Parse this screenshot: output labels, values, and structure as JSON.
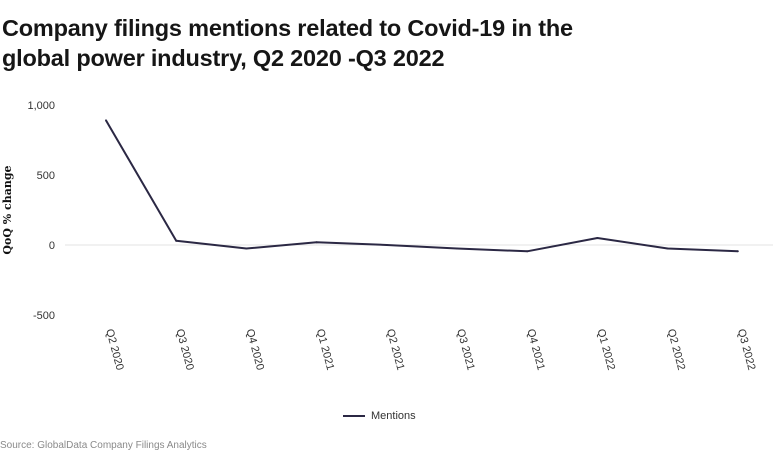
{
  "title_line1": "Company filings mentions related to Covid-19 in the",
  "title_line2": "global power industry, Q2 2020 -Q3 2022",
  "source": "Source: GlobalData Company Filings Analytics",
  "colors": {
    "line": "#2b2844",
    "zero_line": "#e3e3e3"
  },
  "chart_data": {
    "type": "line",
    "title": "Company filings mentions related to Covid-19 in the global power industry, Q2 2020 -Q3 2022",
    "xlabel": "",
    "ylabel": "QoQ % change",
    "categories": [
      "Q2 2020",
      "Q3 2020",
      "Q4 2020",
      "Q1 2021",
      "Q2 2021",
      "Q3 2021",
      "Q4 2021",
      "Q1 2022",
      "Q2 2022",
      "Q3 2022"
    ],
    "series": [
      {
        "name": "Mentions",
        "values": [
          890,
          30,
          -25,
          20,
          0,
          -25,
          -45,
          50,
          -25,
          -45
        ]
      }
    ],
    "yticks": [
      1000,
      500,
      0,
      -500
    ],
    "ytick_labels": [
      "1,000",
      "500",
      "0",
      "-500"
    ],
    "ylim": [
      -500,
      1000
    ],
    "grid": false,
    "legend": "bottom-center"
  }
}
